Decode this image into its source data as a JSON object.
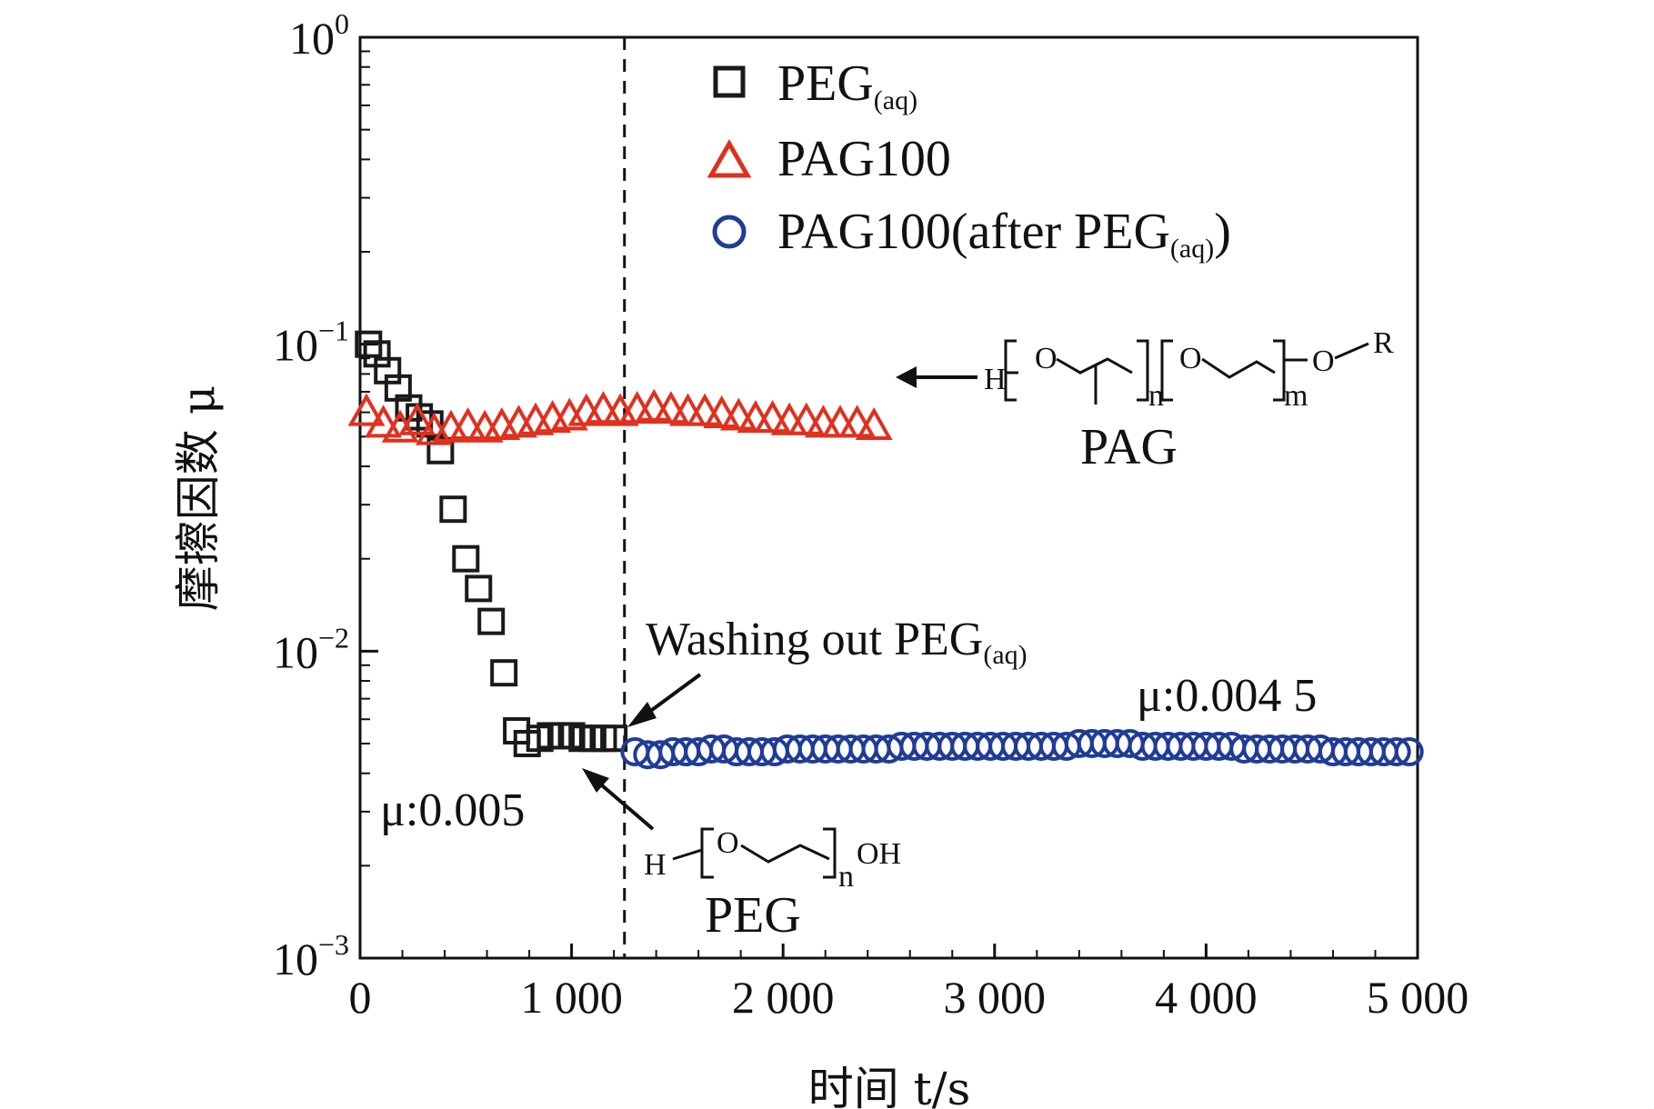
{
  "chart_data": {
    "type": "scatter",
    "xlabel": "时间 t/s",
    "ylabel": "摩擦因数 μ",
    "xlim": [
      0,
      5000
    ],
    "ylim": [
      0.001,
      1
    ],
    "yscale": "log",
    "x_ticks": [
      "0",
      "1 000",
      "2 000",
      "3 000",
      "4 000",
      "5 000"
    ],
    "y_ticks": [
      {
        "base": "10",
        "exp": "0"
      },
      {
        "base": "10",
        "exp": "−1"
      },
      {
        "base": "10",
        "exp": "−2"
      },
      {
        "base": "10",
        "exp": "−3"
      }
    ],
    "legend_position": "top-right",
    "series": [
      {
        "name": "PEG(aq)",
        "legend_main": "PEG",
        "legend_sub": "(aq)",
        "marker": "square",
        "color": "#1a1a1a",
        "x": [
          40,
          80,
          130,
          180,
          230,
          280,
          330,
          380,
          440,
          500,
          560,
          620,
          680,
          740,
          790,
          850,
          900,
          950,
          1000,
          1050,
          1100,
          1150,
          1200
        ],
        "y": [
          0.1,
          0.093,
          0.082,
          0.072,
          0.062,
          0.058,
          0.055,
          0.045,
          0.029,
          0.02,
          0.016,
          0.0125,
          0.0085,
          0.0055,
          0.005,
          0.0052,
          0.0053,
          0.0053,
          0.0053,
          0.0052,
          0.0052,
          0.0052,
          0.0052
        ]
      },
      {
        "name": "PAG100",
        "legend_main": "PAG100",
        "marker": "triangle",
        "color": "#e0301e",
        "x": [
          30,
          110,
          190,
          270,
          350,
          430,
          510,
          590,
          670,
          750,
          830,
          910,
          990,
          1070,
          1150,
          1230,
          1310,
          1390,
          1470,
          1550,
          1630,
          1710,
          1790,
          1870,
          1950,
          2030,
          2110,
          2190,
          2270,
          2350,
          2430
        ],
        "y": [
          0.06,
          0.055,
          0.053,
          0.056,
          0.052,
          0.053,
          0.054,
          0.053,
          0.054,
          0.055,
          0.056,
          0.057,
          0.058,
          0.06,
          0.061,
          0.06,
          0.061,
          0.062,
          0.061,
          0.06,
          0.06,
          0.059,
          0.058,
          0.057,
          0.057,
          0.056,
          0.056,
          0.055,
          0.055,
          0.055,
          0.054
        ]
      },
      {
        "name": "PAG100(after PEG(aq))",
        "legend_main": "PAG100(after PEG",
        "legend_sub": "(aq)",
        "legend_tail": ")",
        "marker": "circle",
        "color": "#1f3c96",
        "x": [
          1300,
          1360,
          1420,
          1480,
          1540,
          1600,
          1660,
          1720,
          1780,
          1840,
          1900,
          1960,
          2020,
          2080,
          2140,
          2200,
          2260,
          2320,
          2380,
          2440,
          2500,
          2560,
          2620,
          2680,
          2740,
          2800,
          2860,
          2920,
          2980,
          3040,
          3100,
          3160,
          3220,
          3280,
          3340,
          3400,
          3460,
          3520,
          3580,
          3640,
          3700,
          3760,
          3820,
          3880,
          3940,
          4000,
          4060,
          4120,
          4180,
          4240,
          4300,
          4360,
          4420,
          4480,
          4540,
          4600,
          4660,
          4720,
          4780,
          4840,
          4900,
          4960
        ],
        "y": [
          0.0047,
          0.0046,
          0.0046,
          0.0047,
          0.0047,
          0.0047,
          0.0048,
          0.0048,
          0.0047,
          0.0047,
          0.0047,
          0.0047,
          0.0048,
          0.0048,
          0.0048,
          0.0048,
          0.0048,
          0.0048,
          0.0048,
          0.0048,
          0.0048,
          0.0049,
          0.0049,
          0.0049,
          0.0049,
          0.0049,
          0.0049,
          0.0049,
          0.0049,
          0.0049,
          0.0049,
          0.0049,
          0.0049,
          0.0049,
          0.0049,
          0.005,
          0.005,
          0.005,
          0.005,
          0.005,
          0.0049,
          0.0049,
          0.0049,
          0.0049,
          0.0049,
          0.0049,
          0.0049,
          0.0049,
          0.0048,
          0.0048,
          0.0048,
          0.0048,
          0.0048,
          0.0048,
          0.0048,
          0.0047,
          0.0047,
          0.0047,
          0.0047,
          0.0047,
          0.0047,
          0.0047
        ]
      }
    ],
    "vline_x": 1250,
    "annotations": {
      "washing": {
        "main": "Washing out PEG",
        "sub": "(aq)"
      },
      "mu_right": "μ:0.004 5",
      "mu_left": "μ:0.005",
      "pag_label": "PAG",
      "peg_label": "PEG",
      "pag_formula": {
        "h": "H",
        "o1": "O",
        "n": "n",
        "o2": "O",
        "m": "m",
        "o3": "O",
        "r": "R"
      },
      "peg_formula": {
        "h": "H",
        "o": "O",
        "n": "n",
        "oh": "OH"
      }
    }
  }
}
